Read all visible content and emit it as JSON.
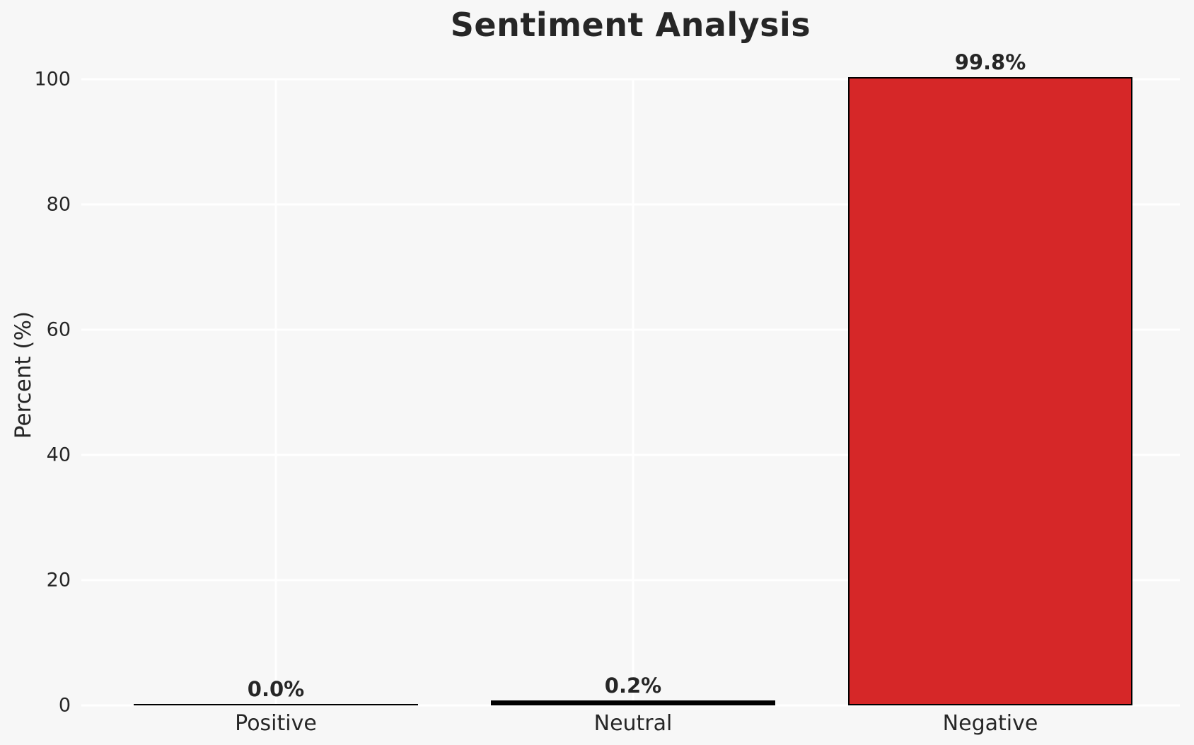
{
  "chart_data": {
    "type": "bar",
    "title": "Sentiment Analysis",
    "xlabel": "",
    "ylabel": "Percent (%)",
    "categories": [
      "Positive",
      "Neutral",
      "Negative"
    ],
    "values": [
      0.0,
      0.2,
      99.8
    ],
    "value_labels": [
      "0.0%",
      "0.2%",
      "99.8%"
    ],
    "bar_colors": [
      "#000000",
      "#000000",
      "#d62728"
    ],
    "bar_edge_color": "#000000",
    "yticks": [
      0,
      20,
      40,
      60,
      80,
      100
    ],
    "ylim": [
      0,
      100
    ],
    "grid": true,
    "legend": false,
    "gridline_color": "#ffffff",
    "background_color": "#f7f7f7",
    "text_color": "#262626"
  }
}
